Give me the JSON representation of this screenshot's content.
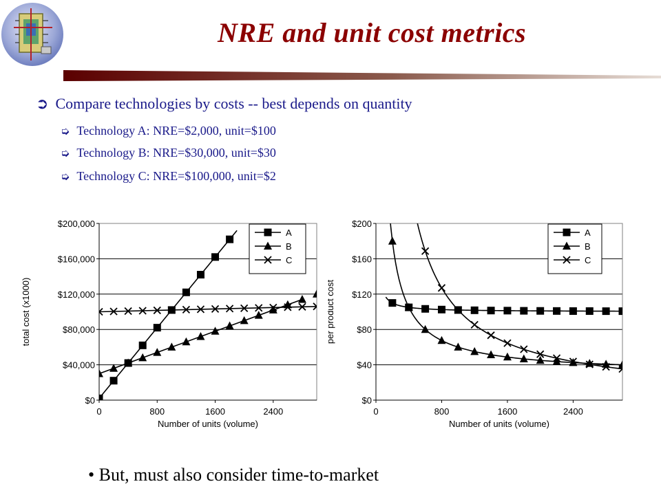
{
  "title": "NRE and unit cost metrics",
  "bullets": {
    "main": "Compare technologies by costs -- best depends on quantity",
    "subs": [
      "Technology A:  NRE=$2,000,   unit=$100",
      "Technology B:  NRE=$30,000,  unit=$30",
      "Technology C:  NRE=$100,000, unit=$2"
    ]
  },
  "footer": "• But, must also consider time-to-market",
  "colors": {
    "title": "#8b0000",
    "text": "#1a1a8a",
    "rule_dark": "#5b0000",
    "rule_light": "#c9b4a6"
  },
  "icons": {
    "main_bullet": "arrow-bullet-icon",
    "sub_bullet": "hollow-arrow-bullet-icon",
    "logo": "chip-globe-logo-icon"
  },
  "chart_data": [
    {
      "type": "line",
      "ylabel": "total cost (x1000)",
      "xlabel": "Number of units (volume)",
      "xlim": [
        0,
        3000
      ],
      "ylim": [
        0,
        200000
      ],
      "xticks": [
        0,
        800,
        1600,
        2400
      ],
      "xtick_labels": [
        "0",
        "800",
        "1600",
        "2400"
      ],
      "yticks": [
        0,
        40000,
        80000,
        120000,
        160000,
        200000
      ],
      "ytick_labels": [
        "$0",
        "$40,000",
        "$80,000",
        "$120,000",
        "$160,000",
        "$200,000"
      ],
      "grid": "horizontal",
      "legend": "top-right",
      "series": [
        {
          "name": "A",
          "marker": "square",
          "line_to_x": 1900,
          "line_slope_per_unit": 100,
          "line_intercept": 2000,
          "points": [
            [
              0,
              2000
            ],
            [
              200,
              22000
            ],
            [
              400,
              42000
            ],
            [
              600,
              62000
            ],
            [
              800,
              82000
            ],
            [
              1000,
              102000
            ],
            [
              1200,
              122000
            ],
            [
              1400,
              142000
            ],
            [
              1600,
              162000
            ],
            [
              1800,
              182000
            ]
          ]
        },
        {
          "name": "B",
          "marker": "triangle",
          "line_to_x": 2800,
          "line_slope_per_unit": 30,
          "line_intercept": 30000,
          "points": [
            [
              0,
              30000
            ],
            [
              200,
              36000
            ],
            [
              400,
              42000
            ],
            [
              600,
              48000
            ],
            [
              800,
              54000
            ],
            [
              1000,
              60000
            ],
            [
              1200,
              66000
            ],
            [
              1400,
              72000
            ],
            [
              1600,
              78000
            ],
            [
              1800,
              84000
            ],
            [
              2000,
              90000
            ],
            [
              2200,
              96000
            ],
            [
              2400,
              102000
            ],
            [
              2600,
              108000
            ],
            [
              2800,
              114000
            ],
            [
              3000,
              120000
            ]
          ]
        },
        {
          "name": "C",
          "marker": "x",
          "line_to_x": 3000,
          "line_slope_per_unit": 2,
          "line_intercept": 100000,
          "points": [
            [
              0,
              100000
            ],
            [
              200,
              100400
            ],
            [
              400,
              100800
            ],
            [
              600,
              101200
            ],
            [
              800,
              101600
            ],
            [
              1000,
              102000
            ],
            [
              1200,
              102400
            ],
            [
              1400,
              102800
            ],
            [
              1600,
              103200
            ],
            [
              1800,
              103600
            ],
            [
              2000,
              104000
            ],
            [
              2200,
              104400
            ],
            [
              2400,
              104800
            ],
            [
              2600,
              105200
            ],
            [
              2800,
              105600
            ],
            [
              3000,
              106000
            ]
          ]
        }
      ]
    },
    {
      "type": "line",
      "ylabel": "per product cost",
      "xlabel": "Number of units (volume)",
      "xlim": [
        0,
        3000
      ],
      "ylim": [
        0,
        200
      ],
      "xticks": [
        0,
        800,
        1600,
        2400
      ],
      "xtick_labels": [
        "0",
        "800",
        "1600",
        "2400"
      ],
      "yticks": [
        0,
        40,
        80,
        120,
        160,
        200
      ],
      "ytick_labels": [
        "$0",
        "$40",
        "$80",
        "$120",
        "$160",
        "$200"
      ],
      "grid": "horizontal",
      "legend": "top-right",
      "series": [
        {
          "name": "A",
          "marker": "square",
          "nre": 2000,
          "unit": 100,
          "points": [
            [
              200,
              110
            ],
            [
              400,
              105
            ],
            [
              600,
              103.3
            ],
            [
              800,
              102.5
            ],
            [
              1000,
              102
            ],
            [
              1200,
              101.7
            ],
            [
              1400,
              101.4
            ],
            [
              1600,
              101.3
            ],
            [
              1800,
              101.1
            ],
            [
              2000,
              101
            ],
            [
              2200,
              100.9
            ],
            [
              2400,
              100.8
            ],
            [
              2600,
              100.8
            ],
            [
              2800,
              100.7
            ],
            [
              3000,
              100.7
            ]
          ]
        },
        {
          "name": "B",
          "marker": "triangle",
          "nre": 30000,
          "unit": 30,
          "points": [
            [
              200,
              180
            ],
            [
              400,
              105
            ],
            [
              600,
              80
            ],
            [
              800,
              67.5
            ],
            [
              1000,
              60
            ],
            [
              1200,
              55
            ],
            [
              1400,
              51.4
            ],
            [
              1600,
              48.8
            ],
            [
              1800,
              46.7
            ],
            [
              2000,
              45
            ],
            [
              2200,
              43.6
            ],
            [
              2400,
              42.5
            ],
            [
              2600,
              41.5
            ],
            [
              2800,
              40.7
            ],
            [
              3000,
              40
            ]
          ]
        },
        {
          "name": "C",
          "marker": "x",
          "nre": 100000,
          "unit": 2,
          "points": [
            [
              600,
              168.7
            ],
            [
              800,
              127
            ],
            [
              1000,
              102
            ],
            [
              1200,
              85.3
            ],
            [
              1400,
              73.4
            ],
            [
              1600,
              64.5
            ],
            [
              1800,
              57.6
            ],
            [
              2000,
              52
            ],
            [
              2200,
              47.5
            ],
            [
              2400,
              43.7
            ],
            [
              2600,
              40.5
            ],
            [
              2800,
              37.7
            ],
            [
              3000,
              35.3
            ]
          ]
        }
      ]
    }
  ]
}
